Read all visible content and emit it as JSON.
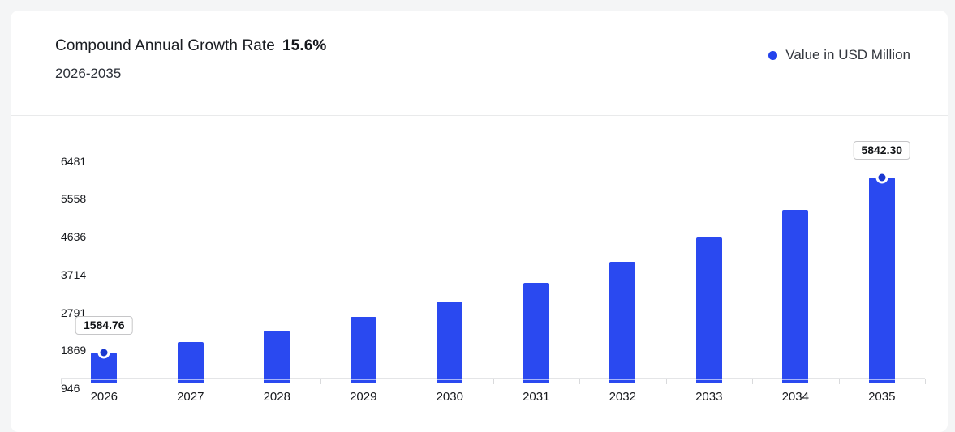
{
  "header": {
    "title": "Compound Annual Growth Rate",
    "cagr_value": "15.6%",
    "period": "2026-2035"
  },
  "legend": {
    "label": "Value in USD Million",
    "marker_color": "#2342ec"
  },
  "colors": {
    "bar": "#2a49f0",
    "point_dot": "#1a38d0",
    "axis_line": "#e4e5e7",
    "tick": "#d9dadc"
  },
  "chart_data": {
    "type": "bar",
    "title": "Compound Annual Growth Rate 15.6%",
    "subtitle": "2026-2035",
    "xlabel": "",
    "ylabel": "Value in USD Million",
    "categories": [
      "2026",
      "2027",
      "2028",
      "2029",
      "2030",
      "2031",
      "2032",
      "2033",
      "2034",
      "2035"
    ],
    "series": [
      {
        "name": "Value in USD Million",
        "values": [
          1584.76,
          1832.0,
          2117.8,
          2448.2,
          2830.1,
          3271.6,
          3782.0,
          4372.0,
          5054.4,
          5842.3
        ]
      }
    ],
    "y_ticks": [
      946,
      1869,
      2791,
      3714,
      4636,
      5558,
      6481
    ],
    "ylim": [
      946,
      6800
    ],
    "grid": false,
    "legend_position": "top-right",
    "point_labels": [
      {
        "index": 0,
        "text": "1584.76"
      },
      {
        "index": 9,
        "text": "5842.30"
      }
    ]
  }
}
